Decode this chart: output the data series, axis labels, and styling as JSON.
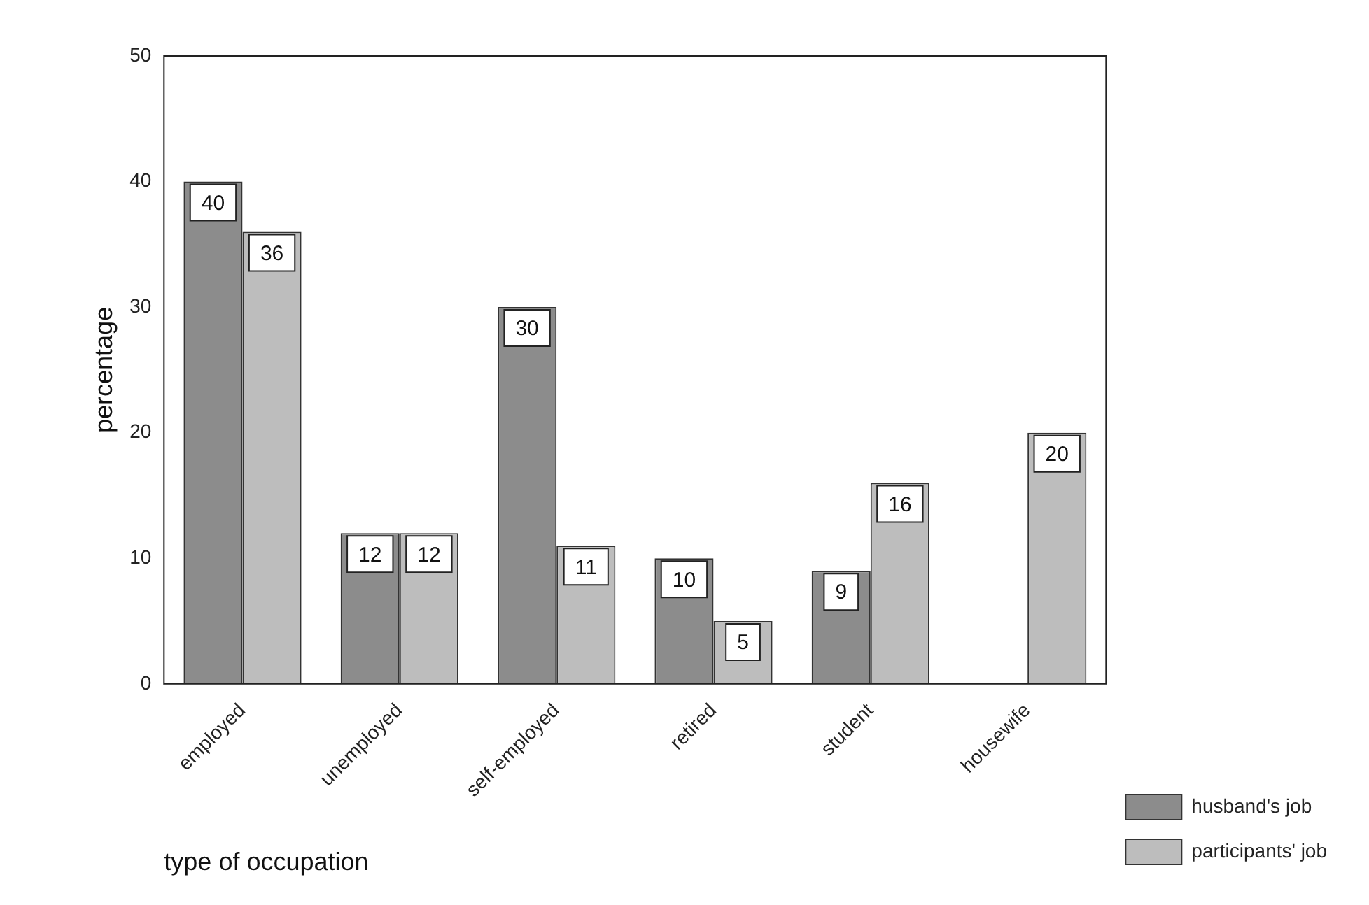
{
  "chart_data": {
    "type": "bar",
    "xlabel": "type of occupation",
    "ylabel": "percentage",
    "categories": [
      "employed",
      "unemployed",
      "self-employed",
      "retired",
      "student",
      "housewife"
    ],
    "series": [
      {
        "name": "husband's job",
        "color": "#8c8c8c",
        "values": [
          40,
          12,
          30,
          10,
          9,
          null
        ]
      },
      {
        "name": "participants' job",
        "color": "#bdbdbd",
        "values": [
          36,
          12,
          11,
          5,
          16,
          20
        ]
      }
    ],
    "ylim": [
      0,
      50
    ],
    "yticks": [
      0,
      10,
      20,
      30,
      40,
      50
    ],
    "grid": false,
    "legend": "right",
    "data_labels": true
  }
}
